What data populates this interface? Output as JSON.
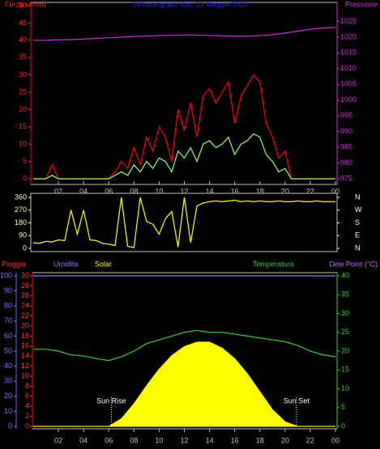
{
  "chart_data": [
    {
      "type": "line",
      "title": "24 hour graph day: 21 Maggio 2020",
      "y_label": "Forza vento)",
      "y2_label": "Pressione",
      "xlim": [
        0,
        24
      ],
      "xticks": [
        {
          "value": 2,
          "label": "02"
        },
        {
          "value": 4,
          "label": "04"
        },
        {
          "value": 6,
          "label": "06"
        },
        {
          "value": 8,
          "label": "08"
        },
        10,
        12,
        14,
        16,
        18,
        20,
        22,
        {
          "value": 24,
          "label": "00"
        }
      ],
      "ylim": [
        0,
        50
      ],
      "yticks": [
        0,
        5,
        10,
        15,
        20,
        25,
        30,
        35,
        40,
        45,
        50
      ],
      "y2lim": [
        975,
        1030
      ],
      "y2ticks": [
        975,
        980,
        985,
        990,
        995,
        1000,
        1005,
        1010,
        1015,
        1020,
        1025
      ],
      "x": [
        0,
        0.5,
        1,
        1.5,
        2,
        2.5,
        3,
        3.5,
        4,
        4.5,
        5,
        5.5,
        6,
        6.5,
        7,
        7.5,
        8,
        8.5,
        9,
        9.5,
        10,
        10.5,
        11,
        11.5,
        12,
        12.5,
        13,
        13.5,
        14,
        14.5,
        15,
        15.5,
        16,
        16.5,
        17,
        17.5,
        18,
        18.5,
        19,
        19.5,
        20,
        20.5,
        21,
        21.5,
        22,
        22.5,
        23,
        23.5,
        24
      ],
      "series": [
        {
          "color": "#ff0000",
          "values": [
            0,
            0,
            0,
            4,
            0,
            0,
            0,
            0,
            0,
            0,
            0,
            0,
            0,
            2,
            5,
            3,
            9,
            4,
            12,
            8,
            15,
            12,
            5,
            20,
            14,
            22,
            12,
            24,
            26,
            22,
            25,
            28,
            16,
            24,
            27,
            30,
            28,
            16,
            12,
            6,
            8,
            0,
            0,
            0,
            0,
            0,
            0,
            0,
            0
          ]
        },
        {
          "color": "#99ff66",
          "values": [
            0,
            0,
            0,
            1,
            0,
            0,
            0,
            0,
            0,
            0,
            0,
            0,
            0,
            1,
            2,
            1,
            4,
            2,
            5,
            3,
            6,
            5,
            2,
            8,
            6,
            9,
            5,
            10,
            11,
            9,
            10,
            12,
            7,
            10,
            11,
            13,
            12,
            7,
            5,
            2,
            3,
            0,
            0,
            0,
            0,
            0,
            0,
            0,
            0
          ]
        },
        {
          "color": "#cc33cc",
          "axis": "y2",
          "values": [
            1019,
            1019,
            1019,
            1019.1,
            1019.1,
            1019.2,
            1019.2,
            1019.3,
            1019.4,
            1019.5,
            1019.6,
            1019.7,
            1019.8,
            1019.9,
            1020,
            1020.1,
            1020.2,
            1020.3,
            1020.4,
            1020.4,
            1020.5,
            1020.5,
            1020.6,
            1020.6,
            1020.7,
            1020.7,
            1020.6,
            1020.6,
            1020.5,
            1020.5,
            1020.4,
            1020.4,
            1020.3,
            1020.3,
            1020.3,
            1020.4,
            1020.5,
            1020.6,
            1020.8,
            1021,
            1021.3,
            1021.6,
            1021.9,
            1022.2,
            1022.5,
            1022.7,
            1022.9,
            1023,
            1023.1
          ]
        }
      ]
    },
    {
      "type": "line",
      "xlim": [
        0,
        24
      ],
      "ylim": [
        0,
        360
      ],
      "yticks": [
        0,
        90,
        180,
        270,
        360
      ],
      "y2lim": [
        0,
        360
      ],
      "y2ticks": [
        {
          "value": 360,
          "label": "N"
        },
        {
          "value": 270,
          "label": "W"
        },
        {
          "value": 180,
          "label": "S"
        },
        {
          "value": 90,
          "label": "E"
        },
        {
          "value": 0,
          "label": "N"
        }
      ],
      "x": [
        0,
        0.5,
        1,
        1.5,
        2,
        2.5,
        3,
        3.5,
        4,
        4.5,
        5,
        5.5,
        6,
        6.5,
        7,
        7.5,
        8,
        8.5,
        9,
        9.5,
        10,
        10.5,
        11,
        11.5,
        12,
        12.5,
        13,
        13.5,
        14,
        14.5,
        15,
        15.5,
        16,
        16.5,
        17,
        17.5,
        18,
        18.5,
        19,
        19.5,
        20,
        20.5,
        21,
        21.5,
        22,
        22.5,
        23,
        23.5,
        24
      ],
      "series": [
        {
          "color": "#ffff00",
          "values": [
            40,
            35,
            50,
            45,
            60,
            55,
            270,
            100,
            270,
            60,
            55,
            35,
            30,
            20,
            360,
            15,
            5,
            360,
            190,
            170,
            100,
            210,
            260,
            10,
            360,
            40,
            300,
            320,
            330,
            335,
            330,
            335,
            340,
            330,
            335,
            330,
            335,
            330,
            330,
            335,
            330,
            330,
            335,
            330,
            330,
            335,
            330,
            330,
            330
          ]
        }
      ]
    },
    {
      "type": "line",
      "xlim": [
        0,
        24
      ],
      "xticks": [
        {
          "value": 2,
          "label": "02"
        },
        {
          "value": 4,
          "label": "04"
        },
        {
          "value": 6,
          "label": "06"
        },
        {
          "value": 8,
          "label": "08"
        },
        10,
        12,
        14,
        16,
        18,
        20,
        22,
        {
          "value": 24,
          "label": "00"
        }
      ],
      "ylim": [
        0,
        100
      ],
      "yticks": [
        0,
        10,
        20,
        30,
        40,
        50,
        60,
        70,
        80,
        90,
        100
      ],
      "rain_lim": [
        0,
        30
      ],
      "rain_ticks": [
        0,
        2,
        4,
        6,
        8,
        10,
        12,
        14,
        16,
        18,
        20,
        22,
        24,
        26,
        28,
        30
      ],
      "y2lim": [
        0,
        40
      ],
      "y2ticks": [
        0,
        5,
        10,
        15,
        20,
        25,
        30,
        35,
        40
      ],
      "y2_label": "Dew Point (°C)",
      "x": [
        0,
        1,
        2,
        3,
        4,
        5,
        6,
        7,
        8,
        9,
        10,
        11,
        12,
        13,
        14,
        15,
        16,
        17,
        18,
        19,
        20,
        21,
        22,
        23,
        24
      ],
      "series": [
        {
          "name": "Pioggia",
          "color": "#ff3333",
          "axis": "rain",
          "values": [
            0,
            0,
            0,
            0,
            0,
            0,
            0,
            0,
            0,
            0,
            0,
            0,
            0,
            0,
            0,
            0,
            0,
            0,
            0,
            0,
            0,
            0,
            0,
            0,
            0
          ]
        },
        {
          "name": "Umidita",
          "color": "#8080ff",
          "values": [
            100,
            100,
            100,
            100,
            100,
            100,
            100,
            100,
            100,
            100,
            100,
            100,
            100,
            100,
            100,
            100,
            100,
            100,
            100,
            100,
            100,
            100,
            100,
            100,
            100
          ]
        },
        {
          "name": "Solar",
          "color": "#ffff00",
          "type": "area",
          "values": [
            0,
            0,
            0,
            0,
            0,
            0,
            0,
            5,
            15,
            27,
            38,
            47,
            53,
            56,
            56,
            52,
            45,
            35,
            23,
            11,
            3,
            0,
            0,
            0,
            0
          ]
        },
        {
          "name": "Temperatura",
          "color": "#33cc33",
          "axis": "y2",
          "values": [
            20.5,
            20.5,
            20,
            19,
            18.7,
            18,
            17.5,
            18.5,
            20,
            22,
            23,
            24,
            25,
            25.5,
            25,
            25,
            24.5,
            24,
            23.5,
            23,
            22.5,
            21.5,
            20,
            19,
            18.5
          ]
        }
      ],
      "annotations": [
        {
          "text": "Sun Rise",
          "x": 6.2
        },
        {
          "text": "Sun Set",
          "x": 20.9
        }
      ]
    }
  ]
}
